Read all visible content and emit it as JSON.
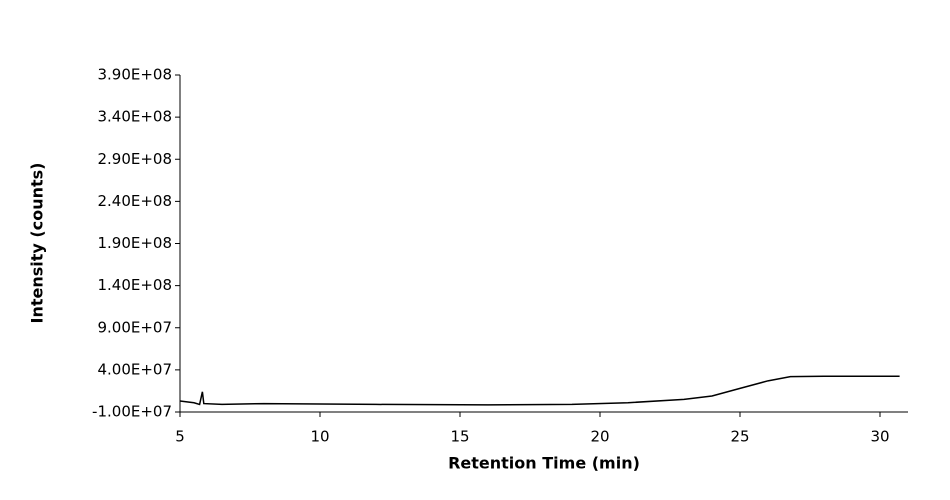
{
  "chart_data": {
    "type": "line",
    "x_label": "Retention Time (min)",
    "y_label": "Intensity (counts)",
    "xlim": [
      5,
      31
    ],
    "xticks": [
      5,
      10,
      15,
      20,
      25,
      30
    ],
    "ylim": [
      -10000000,
      390000000
    ],
    "yticks": [
      {
        "value": -10000000,
        "label": "-1.00E+07"
      },
      {
        "value": 40000000,
        "label": "4.00E+07"
      },
      {
        "value": 90000000,
        "label": "9.00E+07"
      },
      {
        "value": 140000000,
        "label": "1.40E+08"
      },
      {
        "value": 190000000,
        "label": "1.90E+08"
      },
      {
        "value": 240000000,
        "label": "2.40E+08"
      },
      {
        "value": 290000000,
        "label": "2.90E+08"
      },
      {
        "value": 340000000,
        "label": "3.40E+08"
      },
      {
        "value": 390000000,
        "label": "3.90E+08"
      }
    ],
    "x": [
      5.0,
      5.5,
      5.7,
      5.8,
      5.85,
      6.5,
      8,
      12,
      16,
      19,
      21,
      23,
      24,
      25,
      26,
      26.8,
      28,
      30.7
    ],
    "series": [
      {
        "color": "#000000",
        "values": [
          3000000,
          1000000,
          -1000000,
          14000000,
          0,
          -1000000,
          0,
          -1000000,
          -1500000,
          -1000000,
          1000000,
          5000000,
          9000000,
          18000000,
          27000000,
          32000000,
          32500000,
          32500000
        ]
      }
    ]
  }
}
